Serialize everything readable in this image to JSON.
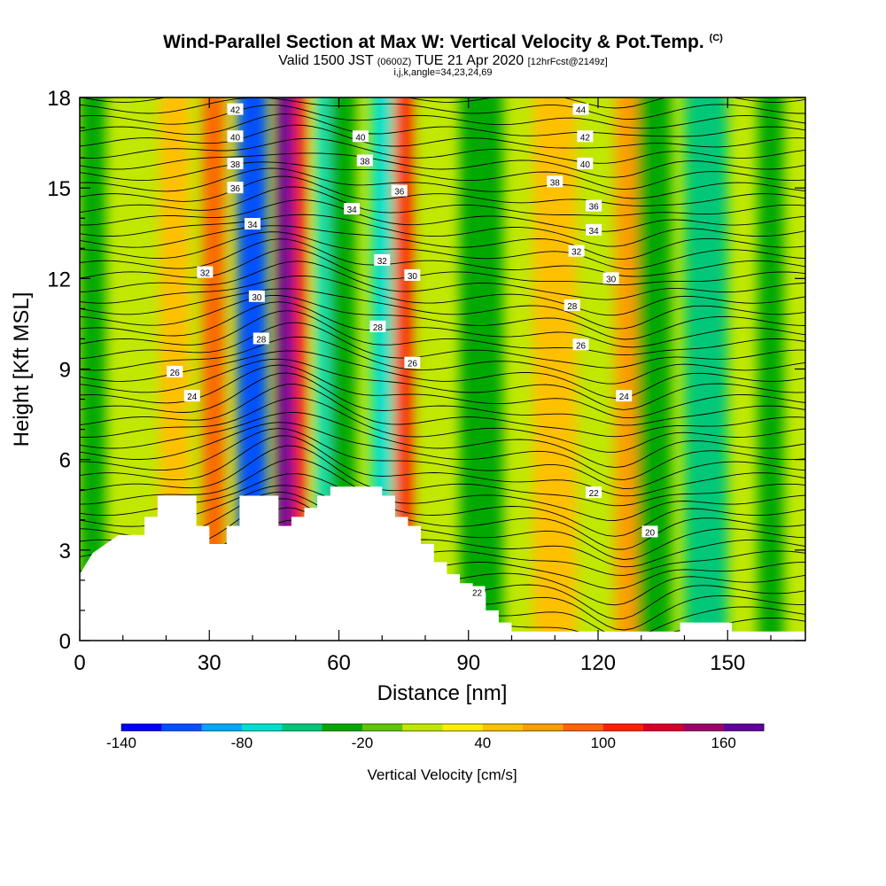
{
  "header": {
    "title": "Wind-Parallel Section at Max W: Vertical Velocity & Pot.Temp.",
    "title_mark": "(C)",
    "subtitle_main": "Valid 1500 JST",
    "subtitle_utc": "(0600Z)",
    "subtitle_date": "TUE 21 Apr 2020",
    "subtitle_fcst": "[12hrFcst@2149z]",
    "subtitle2": "i,j,k,angle=34,23,24,69"
  },
  "chart_data": {
    "type": "heatmap",
    "xlabel": "Distance [nm]",
    "ylabel": "Height [Kft MSL]",
    "xlim": [
      0,
      168
    ],
    "ylim": [
      0,
      18
    ],
    "xticks": [
      0,
      30,
      60,
      90,
      120,
      150
    ],
    "yticks": [
      0,
      3,
      6,
      9,
      12,
      15,
      18
    ],
    "colorbar": {
      "label": "Vertical Velocity [cm/s]",
      "min": -140,
      "max": 180,
      "step": 20,
      "ticks": [
        -140,
        -80,
        -20,
        40,
        100,
        160
      ],
      "colors": [
        "#0000ff",
        "#0050ff",
        "#00a8ff",
        "#00e0d0",
        "#00c878",
        "#00a800",
        "#5cc800",
        "#c0e800",
        "#ffee00",
        "#ffc000",
        "#ff9c00",
        "#ff6400",
        "#ff2000",
        "#d80028",
        "#a00068",
        "#6000a0"
      ]
    },
    "velocity_bands": [
      {
        "x": 3,
        "w": 6,
        "value": -30
      },
      {
        "x": 22,
        "w": 7,
        "value": 55
      },
      {
        "x": 31,
        "w": 5,
        "value": 90
      },
      {
        "x": 40,
        "w": 7,
        "value": -115
      },
      {
        "x": 48,
        "w": 5,
        "value": 165
      },
      {
        "x": 51,
        "w": 3,
        "value": 115
      },
      {
        "x": 56,
        "w": 3,
        "value": -75
      },
      {
        "x": 61,
        "w": 6,
        "value": -40
      },
      {
        "x": 70,
        "w": 5,
        "value": -70
      },
      {
        "x": 75,
        "w": 4,
        "value": 105
      },
      {
        "x": 93,
        "w": 10,
        "value": -30
      },
      {
        "x": 110,
        "w": 10,
        "value": 40
      },
      {
        "x": 127,
        "w": 6,
        "value": 65
      },
      {
        "x": 133,
        "w": 8,
        "value": -30
      },
      {
        "x": 145,
        "w": 10,
        "value": -55
      },
      {
        "x": 160,
        "w": 6,
        "value": -30
      }
    ],
    "terrain": [
      [
        0,
        2.2
      ],
      [
        3,
        2.9
      ],
      [
        6,
        3.2
      ],
      [
        9,
        3.5
      ],
      [
        15,
        3.5
      ],
      [
        15,
        4.1
      ],
      [
        18,
        4.1
      ],
      [
        18,
        4.8
      ],
      [
        27,
        4.8
      ],
      [
        27,
        3.8
      ],
      [
        30,
        3.8
      ],
      [
        30,
        3.2
      ],
      [
        34,
        3.2
      ],
      [
        34,
        3.8
      ],
      [
        37,
        3.8
      ],
      [
        37,
        4.8
      ],
      [
        46,
        4.8
      ],
      [
        46,
        3.8
      ],
      [
        49,
        3.8
      ],
      [
        49,
        4.1
      ],
      [
        52,
        4.1
      ],
      [
        52,
        4.4
      ],
      [
        55,
        4.4
      ],
      [
        55,
        4.8
      ],
      [
        58,
        4.8
      ],
      [
        58,
        5.1
      ],
      [
        70,
        5.1
      ],
      [
        70,
        4.8
      ],
      [
        73,
        4.8
      ],
      [
        73,
        4.1
      ],
      [
        76,
        4.1
      ],
      [
        76,
        3.8
      ],
      [
        79,
        3.8
      ],
      [
        79,
        3.2
      ],
      [
        82,
        3.2
      ],
      [
        82,
        2.6
      ],
      [
        85,
        2.6
      ],
      [
        85,
        2.2
      ],
      [
        88,
        2.2
      ],
      [
        88,
        1.9
      ],
      [
        91,
        1.9
      ],
      [
        91,
        1.6
      ],
      [
        94,
        1.6
      ],
      [
        94,
        1.0
      ],
      [
        97,
        1.0
      ],
      [
        97,
        0.6
      ],
      [
        100,
        0.6
      ],
      [
        100,
        0.3
      ],
      [
        139,
        0.3
      ],
      [
        139,
        0.6
      ],
      [
        151,
        0.6
      ],
      [
        151,
        0.3
      ],
      [
        168,
        0.3
      ]
    ],
    "theta_labels": [
      {
        "label": "42",
        "x": 36,
        "y": 17.6
      },
      {
        "label": "40",
        "x": 36,
        "y": 16.7
      },
      {
        "label": "38",
        "x": 36,
        "y": 15.8
      },
      {
        "label": "36",
        "x": 36,
        "y": 15.0
      },
      {
        "label": "34",
        "x": 40,
        "y": 13.8
      },
      {
        "label": "32",
        "x": 29,
        "y": 12.2
      },
      {
        "label": "30",
        "x": 41,
        "y": 11.4
      },
      {
        "label": "28",
        "x": 42,
        "y": 10.0
      },
      {
        "label": "26",
        "x": 22,
        "y": 8.9
      },
      {
        "label": "24",
        "x": 26,
        "y": 8.1
      },
      {
        "label": "40",
        "x": 65,
        "y": 16.7
      },
      {
        "label": "38",
        "x": 66,
        "y": 15.9
      },
      {
        "label": "36",
        "x": 74,
        "y": 14.9
      },
      {
        "label": "34",
        "x": 63,
        "y": 14.3
      },
      {
        "label": "32",
        "x": 70,
        "y": 12.6
      },
      {
        "label": "30",
        "x": 77,
        "y": 12.1
      },
      {
        "label": "28",
        "x": 69,
        "y": 10.4
      },
      {
        "label": "26",
        "x": 77,
        "y": 9.2
      },
      {
        "label": "44",
        "x": 116,
        "y": 17.6
      },
      {
        "label": "42",
        "x": 117,
        "y": 16.7
      },
      {
        "label": "40",
        "x": 117,
        "y": 15.8
      },
      {
        "label": "38",
        "x": 110,
        "y": 15.2
      },
      {
        "label": "36",
        "x": 119,
        "y": 14.4
      },
      {
        "label": "34",
        "x": 119,
        "y": 13.6
      },
      {
        "label": "32",
        "x": 115,
        "y": 12.9
      },
      {
        "label": "30",
        "x": 123,
        "y": 12.0
      },
      {
        "label": "28",
        "x": 114,
        "y": 11.1
      },
      {
        "label": "26",
        "x": 116,
        "y": 9.8
      },
      {
        "label": "24",
        "x": 126,
        "y": 8.1
      },
      {
        "label": "22",
        "x": 119,
        "y": 4.9
      },
      {
        "label": "20",
        "x": 132,
        "y": 3.6
      },
      {
        "label": "22",
        "x": 92,
        "y": 1.6
      }
    ]
  }
}
